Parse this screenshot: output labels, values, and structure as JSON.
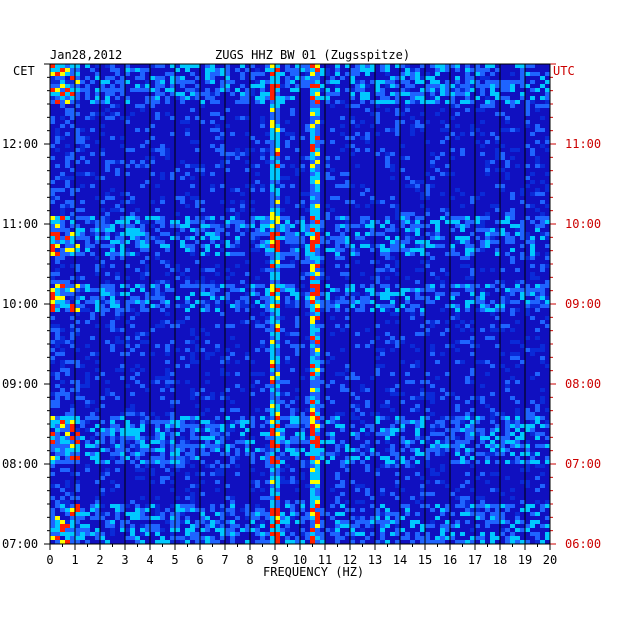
{
  "chart_data": {
    "type": "heatmap",
    "title": "ZUGS HHZ BW 01 (Zugsspitze)",
    "date": "Jan28,2012",
    "xlabel": "FREQUENCY (HZ)",
    "left_axis_label": "CET",
    "right_axis_label": "UTC",
    "x_ticks": [
      "0",
      "1",
      "2",
      "3",
      "4",
      "5",
      "6",
      "7",
      "8",
      "9",
      "10",
      "11",
      "12",
      "13",
      "14",
      "15",
      "16",
      "17",
      "18",
      "19",
      "20"
    ],
    "xlim": [
      0,
      20
    ],
    "cet_ticks": [
      "12:00",
      "11:00",
      "10:00",
      "09:00",
      "08:00",
      "07:00"
    ],
    "utc_ticks": [
      "11:00",
      "10:00",
      "09:00",
      "08:00",
      "07:00",
      "06:00"
    ],
    "time_range_cet": [
      "07:00",
      "13:00"
    ],
    "colors": {
      "background": "#1010c0",
      "low": "#0a2ad8",
      "mid": "#00c8ff",
      "high": "#ffff00",
      "peak": "#ff2000",
      "grid": "#000000",
      "utc_text": "#cc0000"
    },
    "prominent_frequency_lines_hz": [
      9.0,
      10.7
    ]
  }
}
